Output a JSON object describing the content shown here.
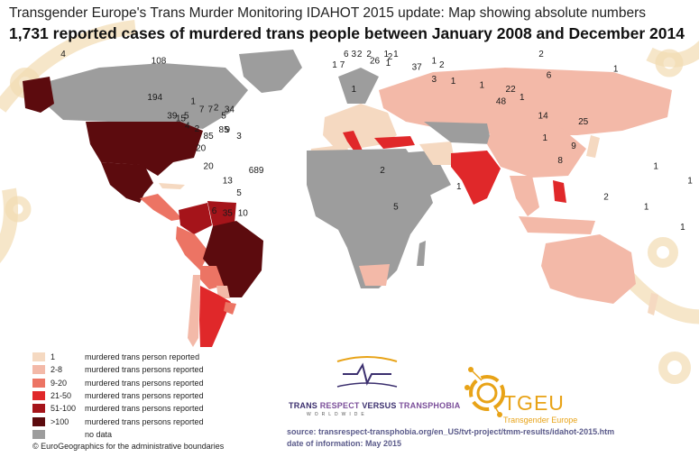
{
  "title": "Transgender Europe's Trans Murder Monitoring IDAHOT 2015 update: Map showing absolute numbers",
  "subtitle": "1,731 reported cases of murdered trans people between January 2008 and December 2014",
  "colors": {
    "c1": "#f5d9c1",
    "c2_8": "#f3b9a8",
    "c9_20": "#ec7464",
    "c21_50": "#e0282a",
    "c51_100": "#a5141a",
    "c100": "#5c0b0e",
    "nodata": "#9d9d9d",
    "decor": "#f2dcb2",
    "tgeu": "#e8a317"
  },
  "legend": [
    {
      "range": "1",
      "label": "murdered trans person reported",
      "color": "#f5d9c1"
    },
    {
      "range": "2-8",
      "label": "murdered trans persons reported",
      "color": "#f3b9a8"
    },
    {
      "range": "9-20",
      "label": "murdered trans persons reported",
      "color": "#ec7464"
    },
    {
      "range": "21-50",
      "label": "murdered trans persons reported",
      "color": "#e0282a"
    },
    {
      "range": "51-100",
      "label": "murdered trans persons reported",
      "color": "#a5141a"
    },
    {
      "range": ">100",
      "label": "murdered trans persons reported",
      "color": "#5c0b0e"
    },
    {
      "range": "",
      "label": "no data",
      "color": "#9d9d9d"
    }
  ],
  "credit": "© EuroGeographics for the administrative boundaries",
  "tvt": {
    "trans": "TRANS ",
    "respect": "RESPECT ",
    "versus": "VERSUS ",
    "transphobia": "TRANSPHOBIA",
    "worldwide": "WORLDWIDE"
  },
  "tgeu": {
    "name": "TGEU",
    "sub": "Transgender Europe"
  },
  "source": "source: transrespect-transphobia.org/en_US/tvt-project/tmm-results/idahot-2015.htm",
  "date": "date of information: May 2015",
  "map_labels": [
    {
      "name": "alaska",
      "text": "4",
      "lon": -150,
      "lat": 66
    },
    {
      "name": "usa",
      "text": "108",
      "lon": -100,
      "lat": 42
    },
    {
      "name": "mexico",
      "text": "194",
      "lon": -102,
      "lat": 24
    },
    {
      "name": "guatemala",
      "text": "39",
      "lon": -93,
      "lat": 15
    },
    {
      "name": "el-salvador",
      "text": "15",
      "lon": -88.5,
      "lat": 13.5
    },
    {
      "name": "honduras",
      "text": "5",
      "lon": -85.5,
      "lat": 15
    },
    {
      "name": "costa-rica",
      "text": "4",
      "lon": -85,
      "lat": 10
    },
    {
      "name": "panama",
      "text": "2",
      "lon": -80,
      "lat": 8.5
    },
    {
      "name": "cuba",
      "text": "1",
      "lon": -82,
      "lat": 22
    },
    {
      "name": "dominican-republic",
      "text": "2",
      "lon": -70,
      "lat": 19
    },
    {
      "name": "caribbean",
      "text": "34",
      "lon": -63,
      "lat": 18
    },
    {
      "name": "jamaica",
      "text": "7",
      "lon": -77.5,
      "lat": 18
    },
    {
      "name": "haiti",
      "text": "7",
      "lon": -73,
      "lat": 18
    },
    {
      "name": "puerto-rico",
      "text": "5",
      "lon": -66,
      "lat": 15
    },
    {
      "name": "venezuela",
      "text": "9",
      "lon": -64,
      "lat": 8
    },
    {
      "name": "colombia",
      "text": "85",
      "lon": -74,
      "lat": 5
    },
    {
      "name": "venezuela-count",
      "text": "85",
      "lon": -66,
      "lat": 8
    },
    {
      "name": "guyana",
      "text": "3",
      "lon": -58,
      "lat": 5
    },
    {
      "name": "ecuador",
      "text": "20",
      "lon": -78,
      "lat": -1
    },
    {
      "name": "peru",
      "text": "20",
      "lon": -74,
      "lat": -10
    },
    {
      "name": "brazil",
      "text": "689",
      "lon": -49,
      "lat": -12
    },
    {
      "name": "bolivia",
      "text": "13",
      "lon": -64,
      "lat": -17
    },
    {
      "name": "paraguay",
      "text": "5",
      "lon": -58,
      "lat": -23
    },
    {
      "name": "chile",
      "text": "6",
      "lon": -71,
      "lat": -32
    },
    {
      "name": "argentina",
      "text": "35",
      "lon": -64,
      "lat": -33
    },
    {
      "name": "uruguay",
      "text": "10",
      "lon": -56,
      "lat": -33
    },
    {
      "name": "uk",
      "text": "6",
      "lon": -2,
      "lat": 53
    },
    {
      "name": "portugal",
      "text": "1",
      "lon": -8,
      "lat": 40
    },
    {
      "name": "spain",
      "text": "7",
      "lon": -4,
      "lat": 40
    },
    {
      "name": "france",
      "text": "3",
      "lon": 2,
      "lat": 46
    },
    {
      "name": "netherlands",
      "text": "2",
      "lon": 5,
      "lat": 52
    },
    {
      "name": "germany",
      "text": "2",
      "lon": 10,
      "lat": 51
    },
    {
      "name": "poland",
      "text": "1",
      "lon": 19,
      "lat": 52
    },
    {
      "name": "lithuania",
      "text": "1",
      "lon": 24,
      "lat": 55
    },
    {
      "name": "italy",
      "text": "26",
      "lon": 13,
      "lat": 42
    },
    {
      "name": "serbia",
      "text": "2",
      "lon": 21,
      "lat": 44
    },
    {
      "name": "albania",
      "text": "1",
      "lon": 20,
      "lat": 41
    },
    {
      "name": "turkey",
      "text": "37",
      "lon": 35,
      "lat": 39
    },
    {
      "name": "georgia",
      "text": "1",
      "lon": 44,
      "lat": 42
    },
    {
      "name": "azerbaijan",
      "text": "2",
      "lon": 48,
      "lat": 40
    },
    {
      "name": "algeria",
      "text": "1",
      "lon": 2,
      "lat": 28
    },
    {
      "name": "iraq",
      "text": "3",
      "lon": 44,
      "lat": 33
    },
    {
      "name": "iran",
      "text": "1",
      "lon": 54,
      "lat": 32
    },
    {
      "name": "pakistan",
      "text": "1",
      "lon": 69,
      "lat": 30
    },
    {
      "name": "nepal",
      "text": "22",
      "lon": 84,
      "lat": 28
    },
    {
      "name": "india",
      "text": "48",
      "lon": 79,
      "lat": 22
    },
    {
      "name": "bangladesh",
      "text": "1",
      "lon": 90,
      "lat": 24
    },
    {
      "name": "china",
      "text": "6",
      "lon": 104,
      "lat": 35
    },
    {
      "name": "russia",
      "text": "2",
      "lon": 100,
      "lat": 62
    },
    {
      "name": "japan",
      "text": "1",
      "lon": 139,
      "lat": 38
    },
    {
      "name": "thailand",
      "text": "14",
      "lon": 101,
      "lat": 15
    },
    {
      "name": "malaysia",
      "text": "1",
      "lon": 102,
      "lat": 4
    },
    {
      "name": "philippines",
      "text": "25",
      "lon": 122,
      "lat": 12
    },
    {
      "name": "indonesia",
      "text": "9",
      "lon": 117,
      "lat": 0
    },
    {
      "name": "indonesia-south",
      "text": "8",
      "lon": 110,
      "lat": -7
    },
    {
      "name": "angola",
      "text": "2",
      "lon": 17,
      "lat": -12
    },
    {
      "name": "south-africa",
      "text": "5",
      "lon": 24,
      "lat": -30
    },
    {
      "name": "indian-ocean",
      "text": "1",
      "lon": 57,
      "lat": -20
    },
    {
      "name": "australia",
      "text": "2",
      "lon": 134,
      "lat": -25
    },
    {
      "name": "pacific-1",
      "text": "1",
      "lon": 160,
      "lat": -10
    },
    {
      "name": "pacific-2",
      "text": "1",
      "lon": 178,
      "lat": -17
    },
    {
      "name": "pacific-3",
      "text": "1",
      "lon": 155,
      "lat": -30
    },
    {
      "name": "new-zealand",
      "text": "1",
      "lon": 174,
      "lat": -40
    }
  ]
}
